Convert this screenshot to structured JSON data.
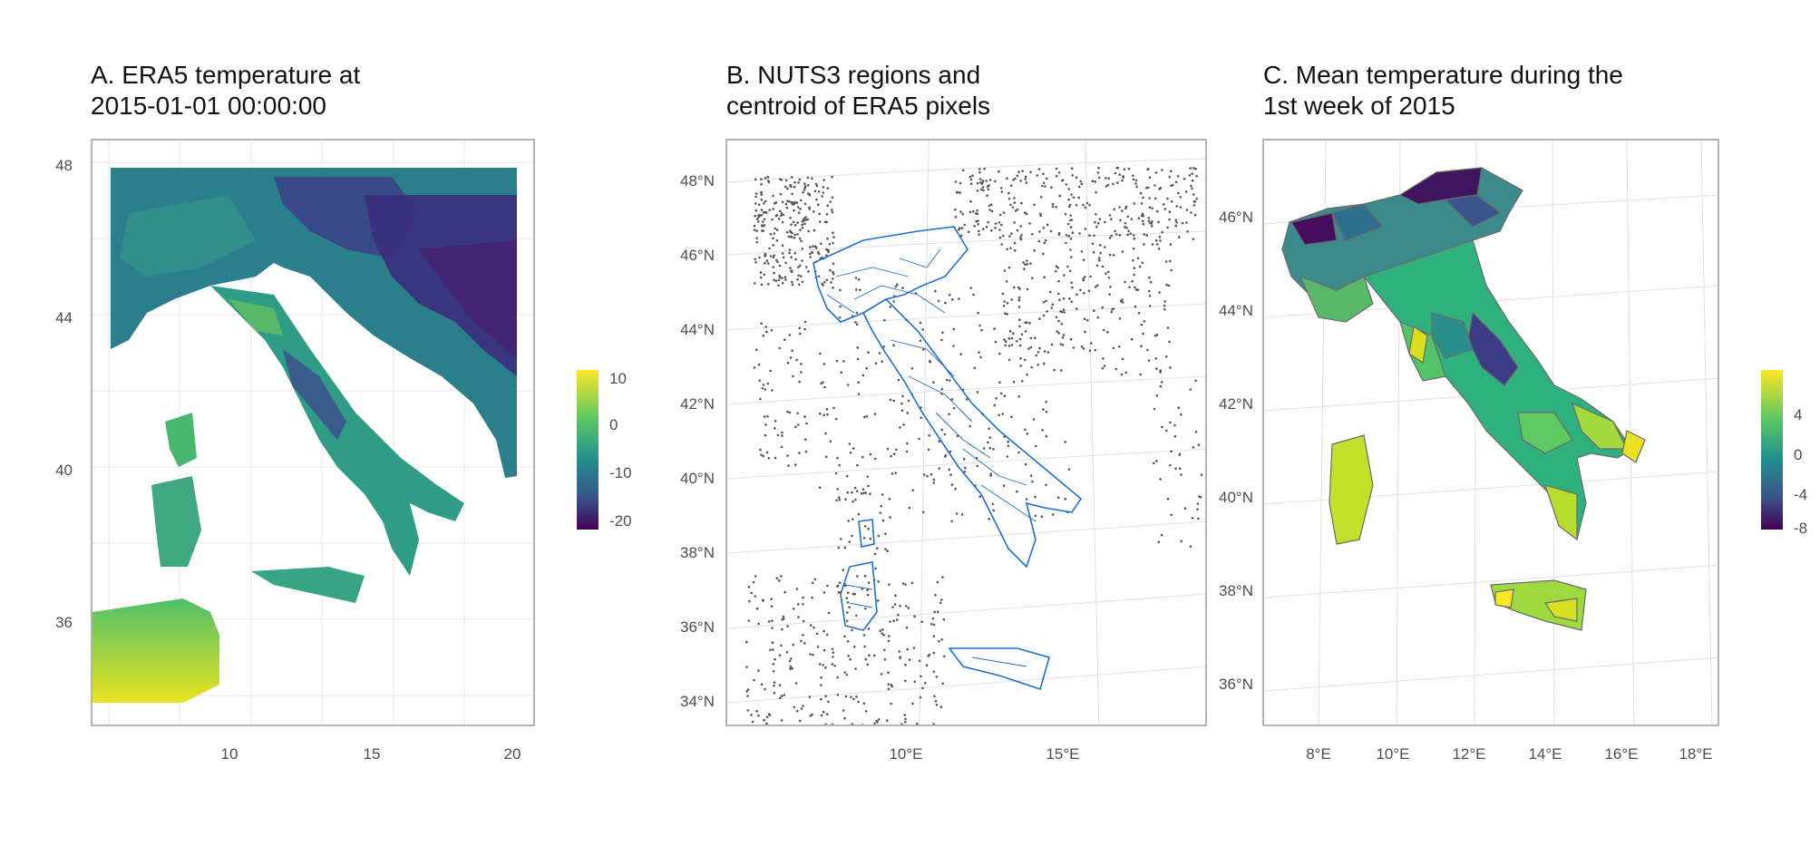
{
  "panels": [
    {
      "title_line1": "A. ERA5 temperature at",
      "title_line2": "2015-01-01 00:00:00",
      "y_ticks": [
        "48",
        "44",
        "40",
        "36"
      ],
      "x_ticks": [
        "10",
        "15",
        "20"
      ],
      "legend_ticks": [
        "10",
        "0",
        "-10",
        "-20"
      ]
    },
    {
      "title_line1": "B. NUTS3 regions and",
      "title_line2": "centroid of ERA5 pixels",
      "y_ticks": [
        "48°N",
        "46°N",
        "44°N",
        "42°N",
        "40°N",
        "38°N",
        "36°N",
        "34°N"
      ],
      "x_ticks": [
        "10°E",
        "15°E"
      ]
    },
    {
      "title_line1": "C. Mean temperature during the",
      "title_line2": "1st week of 2015",
      "y_ticks": [
        "46°N",
        "44°N",
        "42°N",
        "40°N",
        "38°N",
        "36°N"
      ],
      "x_ticks": [
        "8°E",
        "10°E",
        "12°E",
        "14°E",
        "16°E",
        "18°E"
      ],
      "legend_ticks": [
        "4",
        "0",
        "-4",
        "-8"
      ]
    }
  ],
  "colors": {
    "viridis_low": "#440154",
    "viridis_mid": "#21908c",
    "viridis_high": "#fde725",
    "region_outline": "#1f6fd1",
    "centroid_points": "#555555",
    "grid": "#e0e0e0",
    "axis_text": "#4d4d4d"
  }
}
